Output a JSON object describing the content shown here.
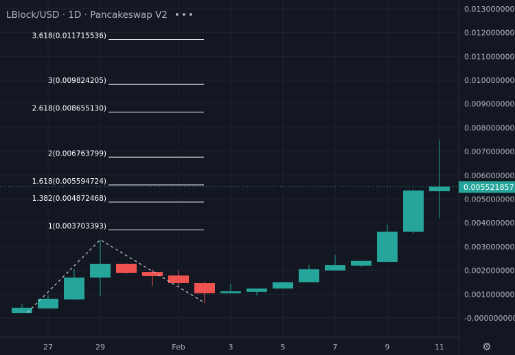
{
  "header": {
    "symbol": "LBlock/USD",
    "interval": "1D",
    "exchange": "Pancakeswap V2",
    "title": "LBlock/USD · 1D · Pancakeswap V2",
    "more_icon": "more-dots-icon"
  },
  "settings_icon": "gear-icon",
  "colors": {
    "background": "#131722",
    "up": "#26a69a",
    "down": "#ef5350",
    "grid": "#1f2330",
    "text": "#b2b5be",
    "fib_line": "#ffffff",
    "price_label_bg": "#26a69a"
  },
  "chart_data": {
    "type": "candlestick",
    "title": "LBlock/USD · 1D · Pancakeswap V2",
    "ylim": [
      -0.0003,
      0.0132
    ],
    "y_ticks": [
      "0.013000000",
      "0.012000000",
      "0.011000000",
      "0.010000000",
      "0.009000000",
      "0.008000000",
      "0.007000000",
      "0.006000000",
      "0.005000000",
      "0.004000000",
      "0.003000000",
      "0.002000000",
      "0.001000000",
      "-0.000000000"
    ],
    "y_tick_values": [
      0.013,
      0.012,
      0.011,
      0.01,
      0.009,
      0.008,
      0.007,
      0.006,
      0.005,
      0.004,
      0.003,
      0.002,
      0.001,
      0
    ],
    "x_ticks": [
      {
        "label": "27",
        "date": "Jan 27"
      },
      {
        "label": "29",
        "date": "Jan 29"
      },
      {
        "label": "Feb",
        "date": "Feb 1"
      },
      {
        "label": "3",
        "date": "Feb 3"
      },
      {
        "label": "5",
        "date": "Feb 5"
      },
      {
        "label": "7",
        "date": "Feb 7"
      },
      {
        "label": "9",
        "date": "Feb 9"
      },
      {
        "label": "11",
        "date": "Feb 11"
      }
    ],
    "candles": [
      {
        "date": "Jan 26",
        "o": 0.0002,
        "h": 0.00058,
        "l": 0.0002,
        "c": 0.00043
      },
      {
        "date": "Jan 27",
        "o": 0.0004,
        "h": 0.00098,
        "l": 0.0004,
        "c": 0.00081
      },
      {
        "date": "Jan 28",
        "o": 0.00078,
        "h": 0.00205,
        "l": 0.00075,
        "c": 0.0017
      },
      {
        "date": "Jan 29",
        "o": 0.0017,
        "h": 0.00329,
        "l": 0.00092,
        "c": 0.00228
      },
      {
        "date": "Jan 30",
        "o": 0.00228,
        "h": 0.0023,
        "l": 0.00187,
        "c": 0.0019
      },
      {
        "date": "Jan 31",
        "o": 0.00193,
        "h": 0.00205,
        "l": 0.00135,
        "c": 0.00176
      },
      {
        "date": "Feb 1",
        "o": 0.00179,
        "h": 0.002,
        "l": 0.00135,
        "c": 0.00147
      },
      {
        "date": "Feb 2",
        "o": 0.00147,
        "h": 0.00153,
        "l": 0.00063,
        "c": 0.00104
      },
      {
        "date": "Feb 3",
        "o": 0.00104,
        "h": 0.00144,
        "l": 0.00104,
        "c": 0.00112
      },
      {
        "date": "Feb 4",
        "o": 0.0011,
        "h": 0.00124,
        "l": 0.00095,
        "c": 0.00124
      },
      {
        "date": "Feb 5",
        "o": 0.00124,
        "h": 0.0015,
        "l": 0.00124,
        "c": 0.0015
      },
      {
        "date": "Feb 6",
        "o": 0.0015,
        "h": 0.00222,
        "l": 0.0015,
        "c": 0.00205
      },
      {
        "date": "Feb 7",
        "o": 0.002,
        "h": 0.00265,
        "l": 0.002,
        "c": 0.00222
      },
      {
        "date": "Feb 8",
        "o": 0.0022,
        "h": 0.0024,
        "l": 0.00216,
        "c": 0.0024
      },
      {
        "date": "Feb 9",
        "o": 0.00236,
        "h": 0.00392,
        "l": 0.00236,
        "c": 0.00363
      },
      {
        "date": "Feb 10",
        "o": 0.00363,
        "h": 0.0054,
        "l": 0.00357,
        "c": 0.00536
      },
      {
        "date": "Feb 11",
        "o": 0.00533,
        "h": 0.0075,
        "l": 0.0042,
        "c": 0.005521857
      }
    ],
    "last_price": "0.005521857",
    "last_price_value": 0.005521857,
    "fib_extension": {
      "anchors": [
        {
          "date": "Jan 26",
          "value": 0.00023
        },
        {
          "date": "Jan 29",
          "value": 0.00329
        },
        {
          "date": "Feb 2",
          "value": 0.00064
        }
      ],
      "levels": [
        {
          "label": "3.618(0.011715536)",
          "value": 0.011715536
        },
        {
          "label": "3(0.009824205)",
          "value": 0.009824205
        },
        {
          "label": "2.618(0.008655130)",
          "value": 0.00865513
        },
        {
          "label": "2(0.006763799)",
          "value": 0.006763799
        },
        {
          "label": "1.618(0.005594724)",
          "value": 0.005594724
        },
        {
          "label": "1.382(0.004872468)",
          "value": 0.004872468
        },
        {
          "label": "1(0.003703393)",
          "value": 0.003703393
        }
      ]
    },
    "grid": true
  }
}
